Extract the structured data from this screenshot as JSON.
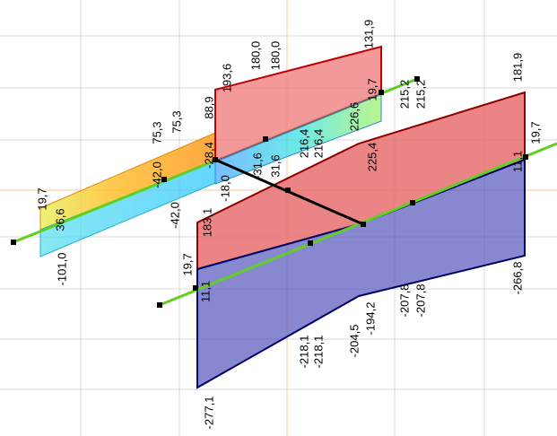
{
  "labels": [
    "19,7",
    "36,6",
    "-101,0",
    "75,3",
    "75,3",
    "-42,0",
    "-42,0",
    "88,9",
    "193,6",
    "180,0",
    "180,0",
    "131,9",
    "-28,4",
    "-18,0",
    "183,1",
    "-31,6",
    "31,6",
    "216,4",
    "216,4",
    "226,6",
    "19,7",
    "215,2",
    "215,2",
    "225,4",
    "181,9",
    "19,7",
    "11,1",
    "19,7",
    "11,1",
    "-218,1",
    "-218,1",
    "-204,5",
    "-194,2",
    "-207,8",
    "-207,8",
    "-266,8",
    "-277,1"
  ]
}
